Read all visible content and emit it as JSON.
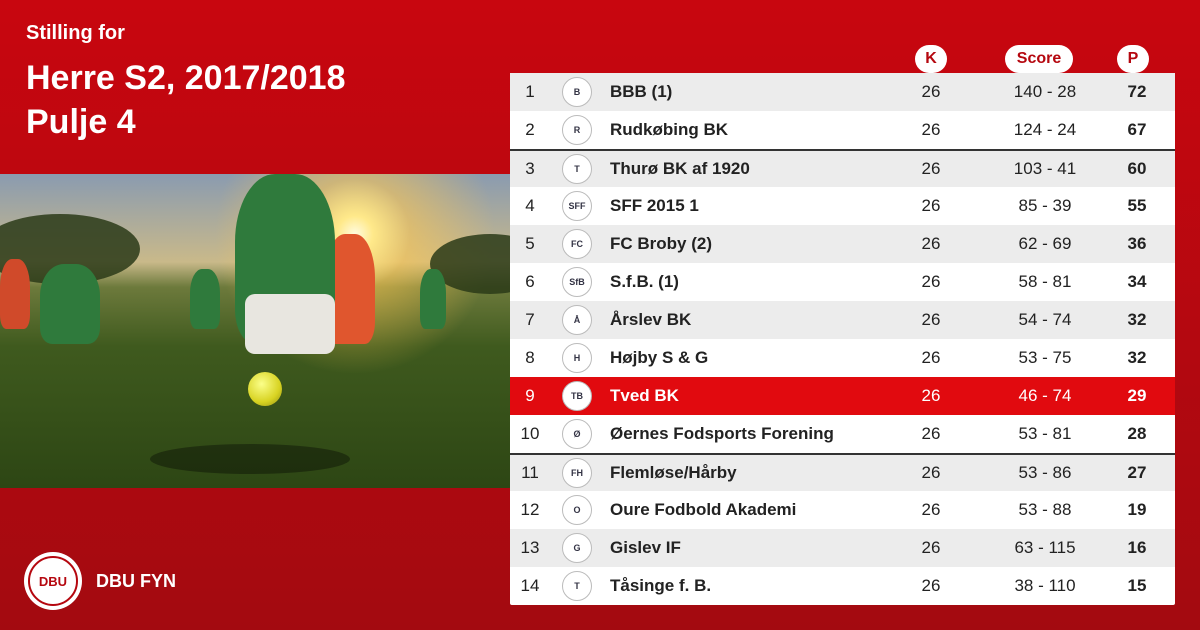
{
  "header": {
    "subtitle": "Stilling for",
    "title_line1": "Herre S2, 2017/2018",
    "title_line2": "Pulje 4"
  },
  "columns": {
    "k": "K",
    "score": "Score",
    "p": "P"
  },
  "brand": {
    "logo_text": "DBU",
    "name": "DBU FYN"
  },
  "colors": {
    "brand_red": "#b5070f",
    "highlight": "#e10a0f"
  },
  "standings": [
    {
      "pos": "1",
      "team": "BBB (1)",
      "k": "26",
      "score": "140 - 28",
      "p": "72",
      "crest": "B"
    },
    {
      "pos": "2",
      "team": "Rudkøbing BK",
      "k": "26",
      "score": "124 - 24",
      "p": "67",
      "crest": "R"
    },
    {
      "pos": "3",
      "team": "Thurø BK af 1920",
      "k": "26",
      "score": "103 - 41",
      "p": "60",
      "crest": "T"
    },
    {
      "pos": "4",
      "team": "SFF 2015 1",
      "k": "26",
      "score": "85 - 39",
      "p": "55",
      "crest": "SFF"
    },
    {
      "pos": "5",
      "team": "FC Broby (2)",
      "k": "26",
      "score": "62 - 69",
      "p": "36",
      "crest": "FC"
    },
    {
      "pos": "6",
      "team": "S.f.B. (1)",
      "k": "26",
      "score": "58 - 81",
      "p": "34",
      "crest": "SfB"
    },
    {
      "pos": "7",
      "team": "Årslev BK",
      "k": "26",
      "score": "54 - 74",
      "p": "32",
      "crest": "Å"
    },
    {
      "pos": "8",
      "team": "Højby S & G",
      "k": "26",
      "score": "53 - 75",
      "p": "32",
      "crest": "H"
    },
    {
      "pos": "9",
      "team": "Tved BK",
      "k": "26",
      "score": "46 - 74",
      "p": "29",
      "crest": "TB"
    },
    {
      "pos": "10",
      "team": "Øernes Fodsports Forening",
      "k": "26",
      "score": "53 - 81",
      "p": "28",
      "crest": "Ø"
    },
    {
      "pos": "11",
      "team": "Flemløse/Hårby",
      "k": "26",
      "score": "53 - 86",
      "p": "27",
      "crest": "FH"
    },
    {
      "pos": "12",
      "team": "Oure Fodbold Akademi",
      "k": "26",
      "score": "53 - 88",
      "p": "19",
      "crest": "O"
    },
    {
      "pos": "13",
      "team": "Gislev IF",
      "k": "26",
      "score": "63 - 115",
      "p": "16",
      "crest": "G"
    },
    {
      "pos": "14",
      "team": "Tåsinge  f. B.",
      "k": "26",
      "score": "38 - 110",
      "p": "15",
      "crest": "T"
    }
  ]
}
